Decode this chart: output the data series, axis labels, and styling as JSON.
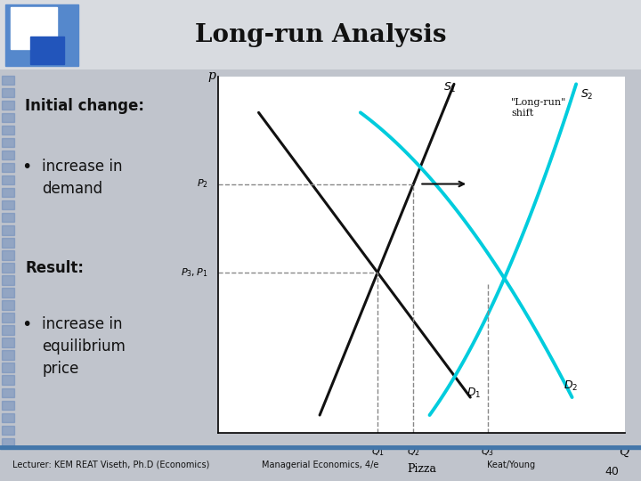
{
  "title": "Long-run Analysis",
  "slide_bg": "#c0c4cc",
  "header_bg": "#d0d3d8",
  "left_panel_bg": "#b8bcc4",
  "chart_bg": "#ffffff",
  "footer_bg": "#c8ccd4",
  "footer_border_color": "#4477aa",
  "footer_text_left": "Lecturer: KEM REAT Viseth, Ph.D (Economics)",
  "footer_text_center": "Managerial Economics, 4/e",
  "footer_text_right": "Keat/Young",
  "footer_page": "40",
  "left_text_1": "Initial change:",
  "left_bullet_1": "increase in\ndemand",
  "left_text_2": "Result:",
  "left_bullet_2": "increase in\nequilibrium\nprice",
  "xlabel": "Pizza",
  "ylabel": "p",
  "xaxis_label": "Q",
  "curve_black": "#111111",
  "curve_cyan": "#00ccdd",
  "dashed_color": "#888888",
  "arrow_color": "#111111",
  "label_S1": "$S_1$",
  "label_S2": "$S_2$",
  "label_D1": "$D_1$",
  "label_D2": "$D_2$",
  "label_P1": "$P_3, P_1$",
  "label_P2": "$P_2$",
  "label_Q1": "$Q_1$",
  "label_Q2": "$Q_2$",
  "label_Q3": "$Q_3$",
  "long_run_text": "\"Long-run\"\nshift",
  "logo_outer_color": "#5588cc",
  "logo_inner_color": "#2255bb",
  "logo_white": "#ffffff",
  "divider_color": "#333333"
}
